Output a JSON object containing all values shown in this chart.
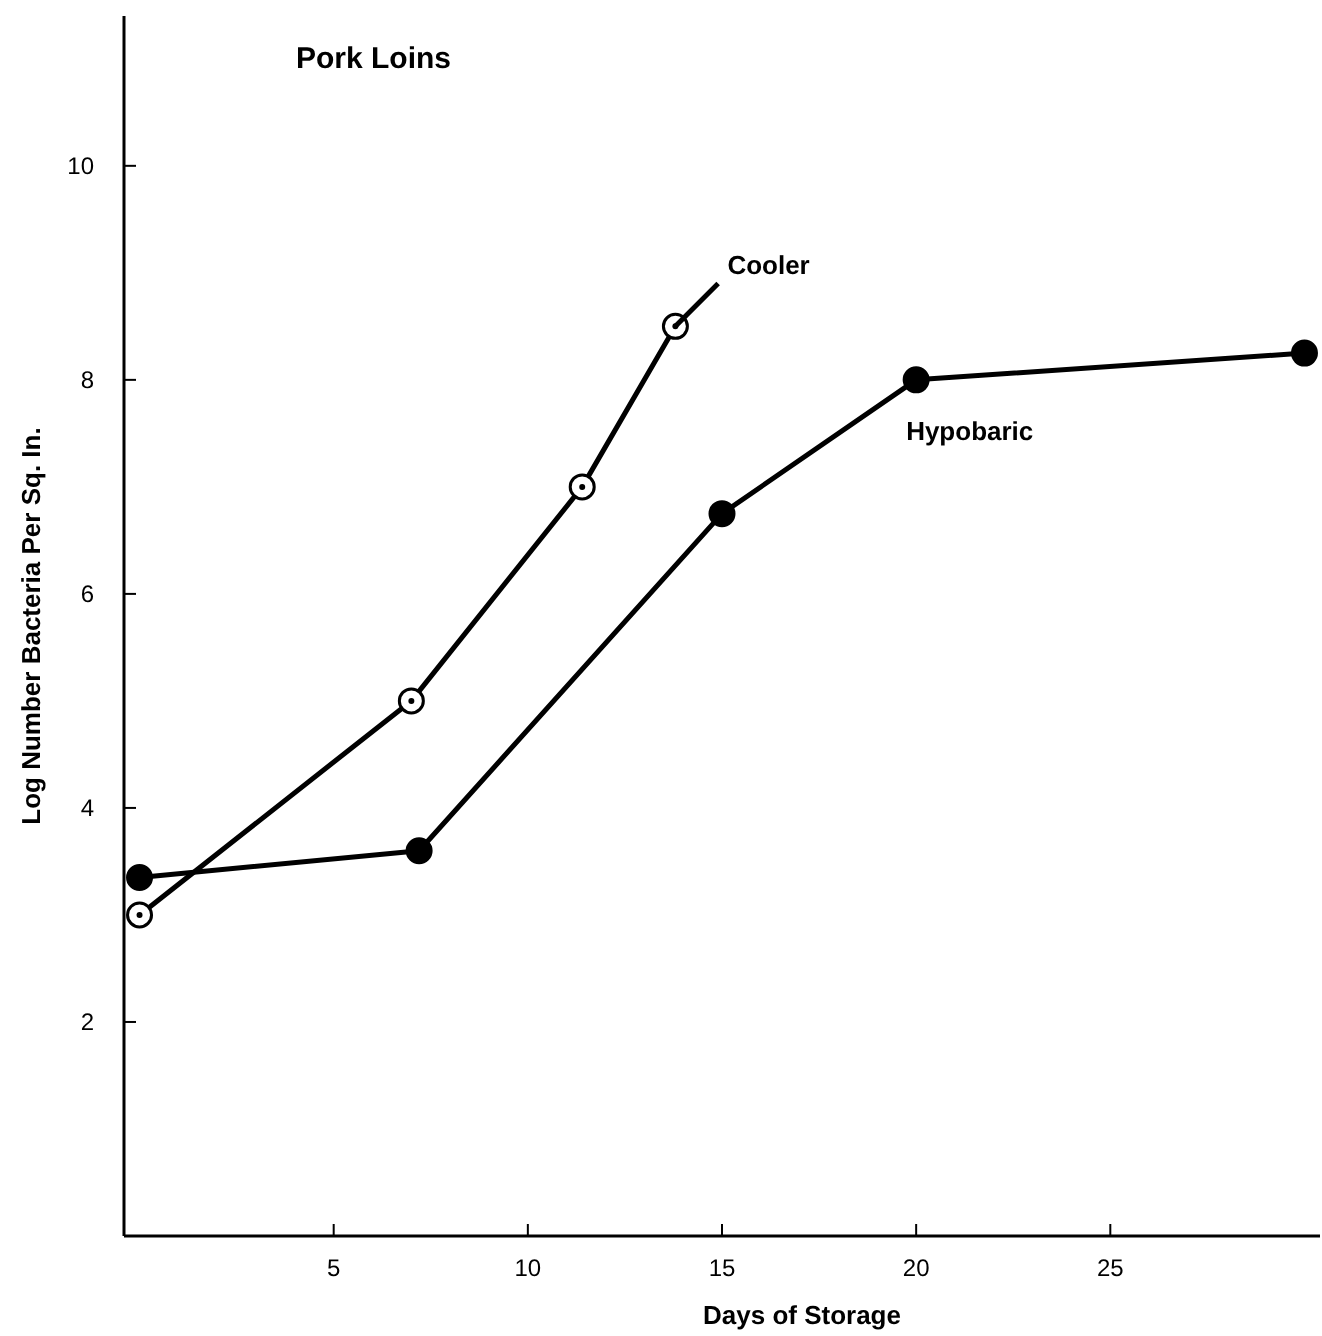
{
  "chart_data": {
    "type": "line",
    "title": "Pork Loins",
    "xlabel": "Days of Storage",
    "ylabel": "Log Number Bacteria Per Sq. In.",
    "xlim": [
      -0.4,
      30.4
    ],
    "xticks": [
      5,
      10,
      15,
      20,
      25
    ],
    "ylim": [
      0,
      11.4
    ],
    "yticks": [
      2,
      4,
      6,
      8,
      10
    ],
    "grid": false,
    "series": [
      {
        "name": "Cooler",
        "color": "#000000",
        "x": [
          0,
          7,
          11.4,
          13.8
        ],
        "values": [
          3.0,
          5.0,
          7.0,
          8.5
        ],
        "marker": "circle"
      },
      {
        "color": "#000000",
        "x": [
          13.8,
          14.9
        ],
        "values": [
          8.5,
          8.9
        ]
      },
      {
        "name": "Hypobaric",
        "color": "#000000",
        "x": [
          0,
          7.2,
          15,
          20,
          30
        ],
        "values": [
          3.35,
          3.6,
          6.75,
          8.0,
          8.25
        ],
        "marker": "circle"
      }
    ]
  }
}
